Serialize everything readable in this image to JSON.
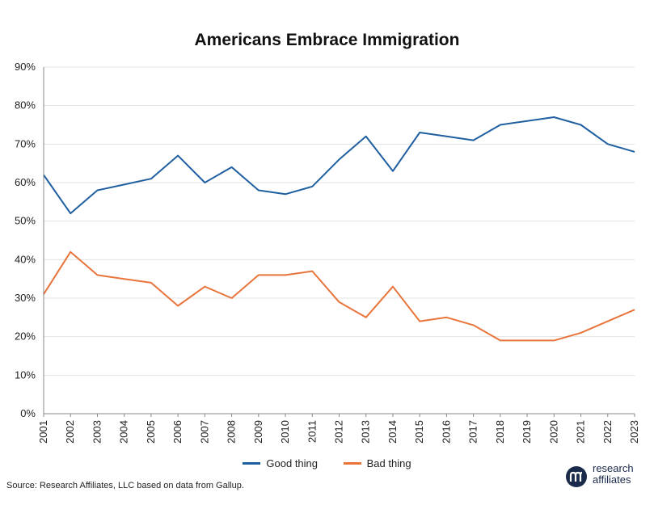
{
  "chart_data": {
    "type": "line",
    "title": "Americans Embrace Immigration",
    "categories": [
      "2001",
      "2002",
      "2003",
      "2004",
      "2005",
      "2006",
      "2007",
      "2008",
      "2009",
      "2010",
      "2011",
      "2012",
      "2013",
      "2014",
      "2015",
      "2016",
      "2017",
      "2018",
      "2019",
      "2020",
      "2021",
      "2022",
      "2023"
    ],
    "series": [
      {
        "name": "Good thing",
        "color": "#1f5fa0",
        "values": [
          62,
          52,
          58,
          59.5,
          61,
          67,
          60,
          64,
          58,
          57,
          59,
          66,
          72,
          63,
          73,
          72,
          71,
          75,
          76,
          77,
          75,
          70,
          68
        ]
      },
      {
        "name": "Bad thing",
        "color": "#e8743b",
        "values": [
          31,
          42,
          36,
          35,
          34,
          28,
          33,
          30,
          36,
          36,
          37,
          29,
          25,
          33,
          24,
          25,
          23,
          19,
          19,
          19,
          21,
          24,
          27
        ]
      }
    ],
    "y_ticks": [
      "0%",
      "10%",
      "20%",
      "30%",
      "40%",
      "50%",
      "60%",
      "70%",
      "80%",
      "90%"
    ],
    "ylim": [
      0,
      90
    ],
    "grid": true,
    "legend_position": "bottom"
  },
  "footer": {
    "source": "Source: Research Affiliates, LLC based on data from Gallup.",
    "logo_line1": "research",
    "logo_line2": "affiliates",
    "logo_color": "#1a2a4a"
  }
}
